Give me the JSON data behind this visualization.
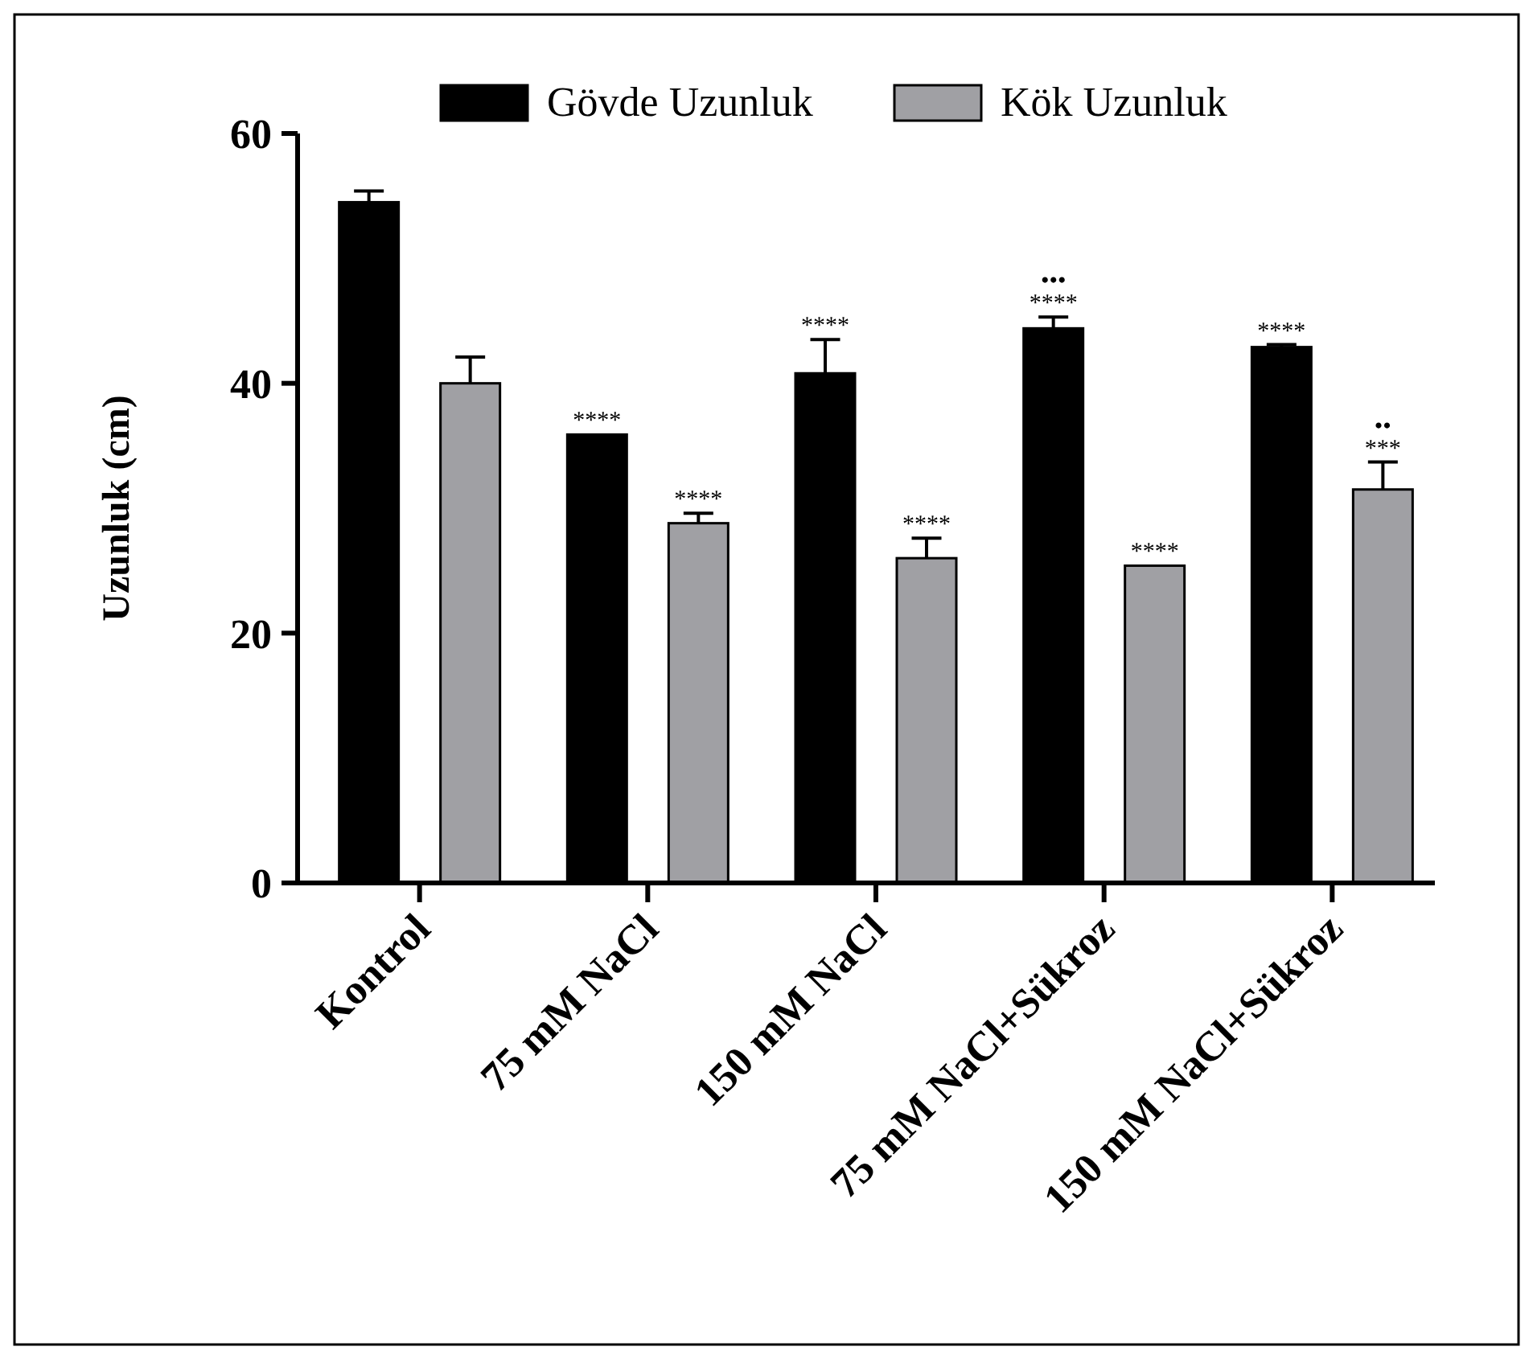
{
  "chart_data": {
    "type": "bar",
    "ylabel": "Uzunluk (cm)",
    "categories": [
      "Kontrol",
      "75 mM NaCl",
      "150 mM NaCl",
      "75 mM NaCl+Sükroz",
      "150 mM NaCl+Sükroz"
    ],
    "series": [
      {
        "name": "Gövde Uzunluk",
        "color": "#000000",
        "value_labels": [
          null,
          "****",
          "****",
          "•••\n****",
          "****"
        ],
        "values": [
          54.5,
          35.9,
          40.8,
          44.4,
          42.9
        ],
        "errors": [
          [
            54.5,
            55.4
          ],
          null,
          [
            40.8,
            43.5
          ],
          [
            44.4,
            45.3
          ],
          [
            42.9,
            43.1
          ]
        ]
      },
      {
        "name": "Kök Uzunluk",
        "color": "#a0a0a4",
        "value_labels": [
          null,
          "****",
          "****",
          "****",
          "••\n***"
        ],
        "values": [
          40.0,
          28.8,
          26.0,
          25.4,
          31.5
        ],
        "errors": [
          [
            40.0,
            42.1
          ],
          [
            28.8,
            29.6
          ],
          [
            26.0,
            27.6
          ],
          null,
          [
            31.5,
            33.7
          ]
        ]
      }
    ],
    "ylim": [
      0,
      60
    ],
    "yticks": [
      0,
      20,
      40,
      60
    ],
    "legend": "top",
    "grid": false
  }
}
